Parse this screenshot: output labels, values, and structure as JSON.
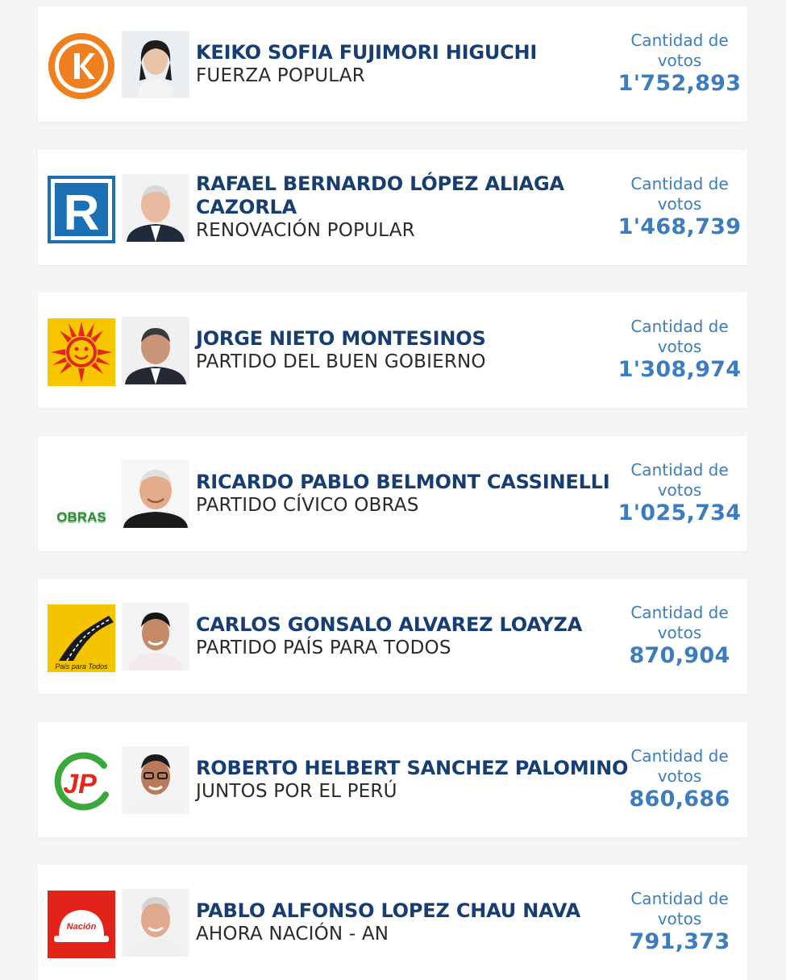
{
  "candidates": [
    {
      "name": "KEIKO SOFIA FUJIMORI HIGUCHI",
      "party": "FUERZA POPULAR",
      "votes_label": "Cantidad de votos",
      "votes": "1'752,893",
      "logo_icon": "fuerza-popular-k-logo",
      "photo_icon": "candidate-photo"
    },
    {
      "name": "RAFAEL BERNARDO LÓPEZ ALIAGA CAZORLA",
      "party": "RENOVACIÓN POPULAR",
      "votes_label": "Cantidad de votos",
      "votes": "1'468,739",
      "logo_icon": "renovacion-popular-r-logo",
      "photo_icon": "candidate-photo"
    },
    {
      "name": "JORGE NIETO MONTESINOS",
      "party": "PARTIDO DEL BUEN GOBIERNO",
      "votes_label": "Cantidad de votos",
      "votes": "1'308,974",
      "logo_icon": "sun-logo",
      "photo_icon": "candidate-photo"
    },
    {
      "name": "RICARDO PABLO BELMONT CASSINELLI",
      "party": "PARTIDO CÍVICO OBRAS",
      "votes_label": "Cantidad de votos",
      "votes": "1'025,734",
      "logo_icon": "obras-logo",
      "logo_text": "OBRAS",
      "photo_icon": "candidate-photo"
    },
    {
      "name": "CARLOS GONSALO ALVAREZ LOAYZA",
      "party": "PARTIDO PAÍS PARA TODOS",
      "votes_label": "Cantidad de votos",
      "votes": "870,904",
      "logo_icon": "road-logo",
      "logo_text": "País para Todos",
      "photo_icon": "candidate-photo"
    },
    {
      "name": "ROBERTO HELBERT SANCHEZ PALOMINO",
      "party": "JUNTOS POR EL PERÚ",
      "votes_label": "Cantidad de votos",
      "votes": "860,686",
      "logo_icon": "jp-logo",
      "logo_text": "JP",
      "photo_icon": "candidate-photo"
    },
    {
      "name": "PABLO ALFONSO LOPEZ CHAU NAVA",
      "party": "AHORA NACIÓN - AN",
      "votes_label": "Cantidad de votos",
      "votes": "791,373",
      "logo_icon": "helmet-logo",
      "logo_text": "Nación",
      "photo_icon": "candidate-photo"
    }
  ],
  "colors": {
    "name": "#173e73",
    "votes": "#3d7dbd",
    "fuerza_orange": "#f07f1d",
    "renovacion_blue": "#1a6fb5",
    "sun_yellow": "#f7c600",
    "sun_red": "#e3281b",
    "obras_green": "#2f8a3a",
    "ahora_red": "#e2231a"
  }
}
